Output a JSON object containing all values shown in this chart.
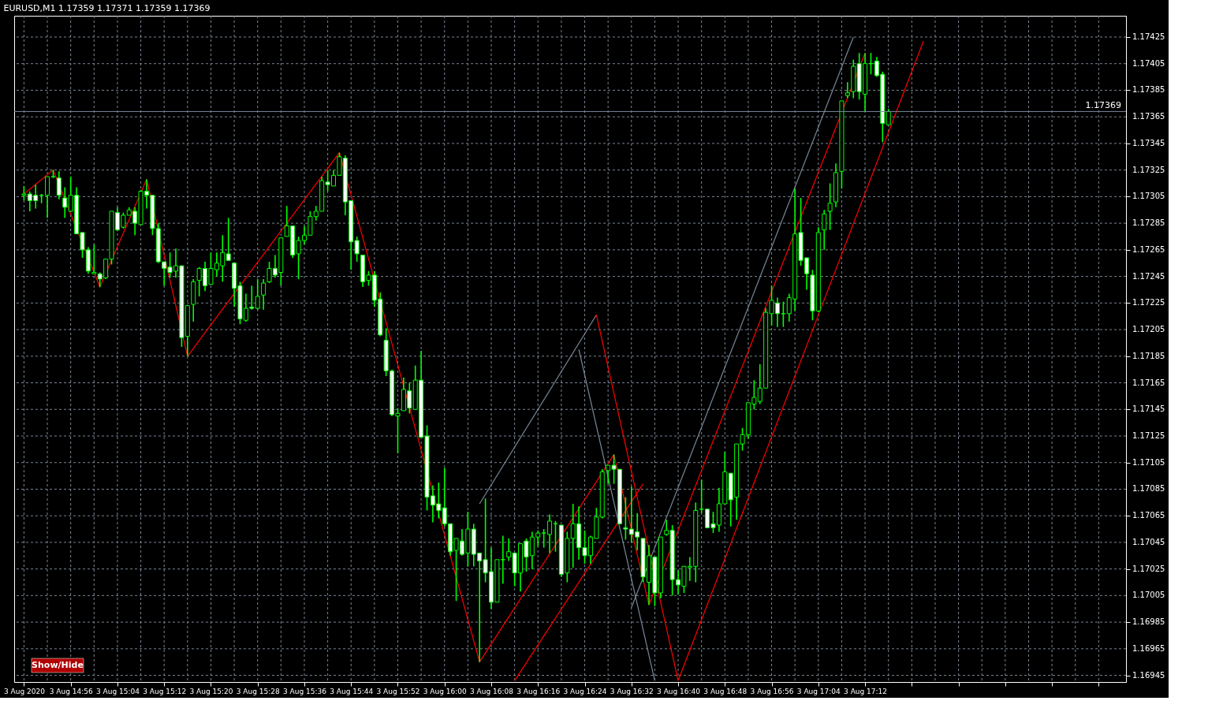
{
  "chart_data": {
    "type": "candlestick",
    "title": "EURUSD,M1  1.17359 1.17371 1.17359 1.17369",
    "color": "#00ff00",
    "grid": true,
    "x": [
      "2020-08-03T14:48",
      "2020-08-03T14:49",
      "2020-08-03T14:50",
      "2020-08-03T14:51",
      "2020-08-03T14:52",
      "2020-08-03T14:53",
      "2020-08-03T14:54",
      "2020-08-03T14:55",
      "2020-08-03T14:56",
      "2020-08-03T14:57",
      "2020-08-03T14:58",
      "2020-08-03T14:59",
      "2020-08-03T15:00",
      "2020-08-03T15:01",
      "2020-08-03T15:02",
      "2020-08-03T15:03",
      "2020-08-03T15:04",
      "2020-08-03T15:05",
      "2020-08-03T15:06",
      "2020-08-03T15:07",
      "2020-08-03T15:08",
      "2020-08-03T15:09",
      "2020-08-03T15:10",
      "2020-08-03T15:11",
      "2020-08-03T15:12",
      "2020-08-03T15:13",
      "2020-08-03T15:14",
      "2020-08-03T15:15",
      "2020-08-03T15:16",
      "2020-08-03T15:17",
      "2020-08-03T15:18",
      "2020-08-03T15:19",
      "2020-08-03T15:20",
      "2020-08-03T15:21",
      "2020-08-03T15:22",
      "2020-08-03T15:23",
      "2020-08-03T15:24",
      "2020-08-03T15:25",
      "2020-08-03T15:26",
      "2020-08-03T15:27",
      "2020-08-03T15:28",
      "2020-08-03T15:29",
      "2020-08-03T15:30",
      "2020-08-03T15:31",
      "2020-08-03T15:32",
      "2020-08-03T15:33",
      "2020-08-03T15:34",
      "2020-08-03T15:35",
      "2020-08-03T15:36",
      "2020-08-03T15:37",
      "2020-08-03T15:38",
      "2020-08-03T15:39",
      "2020-08-03T15:40",
      "2020-08-03T15:41",
      "2020-08-03T15:42",
      "2020-08-03T15:43",
      "2020-08-03T15:44",
      "2020-08-03T15:45",
      "2020-08-03T15:46",
      "2020-08-03T15:47",
      "2020-08-03T15:48",
      "2020-08-03T15:49",
      "2020-08-03T15:50",
      "2020-08-03T15:51",
      "2020-08-03T15:52",
      "2020-08-03T15:53",
      "2020-08-03T15:54",
      "2020-08-03T15:55",
      "2020-08-03T15:56",
      "2020-08-03T15:57",
      "2020-08-03T15:58",
      "2020-08-03T15:59",
      "2020-08-03T16:00",
      "2020-08-03T16:01",
      "2020-08-03T16:02",
      "2020-08-03T16:03",
      "2020-08-03T16:04",
      "2020-08-03T16:05",
      "2020-08-03T16:06",
      "2020-08-03T16:07",
      "2020-08-03T16:08",
      "2020-08-03T16:09",
      "2020-08-03T16:10",
      "2020-08-03T16:11",
      "2020-08-03T16:12",
      "2020-08-03T16:13",
      "2020-08-03T16:14",
      "2020-08-03T16:15",
      "2020-08-03T16:16",
      "2020-08-03T16:17",
      "2020-08-03T16:18",
      "2020-08-03T16:19",
      "2020-08-03T16:20",
      "2020-08-03T16:21",
      "2020-08-03T16:22",
      "2020-08-03T16:23",
      "2020-08-03T16:24",
      "2020-08-03T16:25",
      "2020-08-03T16:26",
      "2020-08-03T16:27",
      "2020-08-03T16:28",
      "2020-08-03T16:29",
      "2020-08-03T16:30",
      "2020-08-03T16:31",
      "2020-08-03T16:32",
      "2020-08-03T16:33",
      "2020-08-03T16:34",
      "2020-08-03T16:35",
      "2020-08-03T16:36",
      "2020-08-03T16:37",
      "2020-08-03T16:38",
      "2020-08-03T16:39",
      "2020-08-03T16:40",
      "2020-08-03T16:41",
      "2020-08-03T16:42",
      "2020-08-03T16:43",
      "2020-08-03T16:44",
      "2020-08-03T16:45",
      "2020-08-03T16:46",
      "2020-08-03T16:47",
      "2020-08-03T16:48",
      "2020-08-03T16:49",
      "2020-08-03T16:50",
      "2020-08-03T16:51",
      "2020-08-03T16:52",
      "2020-08-03T16:53",
      "2020-08-03T16:54",
      "2020-08-03T16:55",
      "2020-08-03T16:56",
      "2020-08-03T16:57",
      "2020-08-03T16:58",
      "2020-08-03T16:59",
      "2020-08-03T17:00",
      "2020-08-03T17:01",
      "2020-08-03T17:02",
      "2020-08-03T17:03",
      "2020-08-03T17:04",
      "2020-08-03T17:05",
      "2020-08-03T17:06",
      "2020-08-03T17:07",
      "2020-08-03T17:08",
      "2020-08-03T17:09",
      "2020-08-03T17:10",
      "2020-08-03T17:11",
      "2020-08-03T17:12",
      "2020-08-03T17:13",
      "2020-08-03T17:14",
      "2020-08-03T17:15",
      "2020-08-03T17:16"
    ],
    "ohlc": [
      [
        1.17306,
        1.17313,
        1.17302,
        1.17307
      ],
      [
        1.17307,
        1.17309,
        1.17294,
        1.17302
      ],
      [
        1.17306,
        1.17314,
        1.17296,
        1.17302
      ],
      [
        1.17306,
        1.17307,
        1.173,
        1.17306
      ],
      [
        1.17306,
        1.1732,
        1.17289,
        1.1732
      ],
      [
        1.1732,
        1.17325,
        1.17319,
        1.1732
      ],
      [
        1.17319,
        1.17324,
        1.17303,
        1.17306
      ],
      [
        1.17304,
        1.17312,
        1.17289,
        1.17297
      ],
      [
        1.17294,
        1.1732,
        1.17294,
        1.17306
      ],
      [
        1.17306,
        1.17312,
        1.17277,
        1.17277
      ],
      [
        1.17278,
        1.17278,
        1.17259,
        1.17265
      ],
      [
        1.17265,
        1.17267,
        1.17247,
        1.17249
      ],
      [
        1.17247,
        1.17269,
        1.17247,
        1.17248
      ],
      [
        1.17247,
        1.17248,
        1.17237,
        1.17243
      ],
      [
        1.17244,
        1.17258,
        1.17243,
        1.17258
      ],
      [
        1.17258,
        1.17294,
        1.17254,
        1.17294
      ],
      [
        1.17293,
        1.17297,
        1.17279,
        1.1728
      ],
      [
        1.17282,
        1.17293,
        1.17281,
        1.17291
      ],
      [
        1.17291,
        1.17297,
        1.17291,
        1.17295
      ],
      [
        1.17294,
        1.17297,
        1.17276,
        1.17285
      ],
      [
        1.17284,
        1.1731,
        1.17284,
        1.17309
      ],
      [
        1.17309,
        1.17318,
        1.17296,
        1.17306
      ],
      [
        1.17306,
        1.17306,
        1.17276,
        1.17281
      ],
      [
        1.17281,
        1.17285,
        1.17255,
        1.17256
      ],
      [
        1.17256,
        1.17256,
        1.17238,
        1.17251
      ],
      [
        1.17252,
        1.17263,
        1.17244,
        1.17248
      ],
      [
        1.17249,
        1.17266,
        1.17244,
        1.17253
      ],
      [
        1.17253,
        1.17253,
        1.17192,
        1.17199
      ],
      [
        1.172,
        1.17223,
        1.17185,
        1.17223
      ],
      [
        1.17224,
        1.17243,
        1.17211,
        1.17241
      ],
      [
        1.17242,
        1.17252,
        1.1723,
        1.17251
      ],
      [
        1.17251,
        1.17256,
        1.17234,
        1.17238
      ],
      [
        1.17239,
        1.17263,
        1.17239,
        1.17251
      ],
      [
        1.1725,
        1.17263,
        1.17245,
        1.17255
      ],
      [
        1.17253,
        1.17276,
        1.17241,
        1.17263
      ],
      [
        1.17262,
        1.17289,
        1.17257,
        1.17257
      ],
      [
        1.17255,
        1.17255,
        1.17222,
        1.17236
      ],
      [
        1.17238,
        1.17241,
        1.17209,
        1.17213
      ],
      [
        1.17212,
        1.17232,
        1.17211,
        1.17221
      ],
      [
        1.17222,
        1.17238,
        1.1722,
        1.17221
      ],
      [
        1.17221,
        1.17243,
        1.1722,
        1.1723
      ],
      [
        1.17231,
        1.17243,
        1.1722,
        1.1724
      ],
      [
        1.17241,
        1.17256,
        1.1724,
        1.17251
      ],
      [
        1.17251,
        1.17261,
        1.17244,
        1.17246
      ],
      [
        1.17248,
        1.17274,
        1.17238,
        1.17274
      ],
      [
        1.17275,
        1.17298,
        1.17275,
        1.17283
      ],
      [
        1.17283,
        1.17283,
        1.17259,
        1.17261
      ],
      [
        1.17262,
        1.17275,
        1.17243,
        1.17272
      ],
      [
        1.17272,
        1.17283,
        1.17269,
        1.17276
      ],
      [
        1.17276,
        1.17294,
        1.17276,
        1.1729
      ],
      [
        1.1729,
        1.17298,
        1.17287,
        1.17294
      ],
      [
        1.17294,
        1.1732,
        1.17294,
        1.17317
      ],
      [
        1.17316,
        1.17325,
        1.17309,
        1.17314
      ],
      [
        1.17313,
        1.17325,
        1.17313,
        1.17321
      ],
      [
        1.17321,
        1.17338,
        1.17321,
        1.17335
      ],
      [
        1.17334,
        1.17336,
        1.17291,
        1.17301
      ],
      [
        1.17302,
        1.17302,
        1.1725,
        1.17271
      ],
      [
        1.17272,
        1.17275,
        1.17256,
        1.17262
      ],
      [
        1.17261,
        1.17261,
        1.17237,
        1.17241
      ],
      [
        1.17242,
        1.17249,
        1.17238,
        1.17246
      ],
      [
        1.17246,
        1.17249,
        1.17222,
        1.17227
      ],
      [
        1.17228,
        1.17233,
        1.172,
        1.17201
      ],
      [
        1.17197,
        1.17206,
        1.1717,
        1.17174
      ],
      [
        1.17174,
        1.17175,
        1.1714,
        1.17141
      ],
      [
        1.1714,
        1.17146,
        1.17112,
        1.17142
      ],
      [
        1.17144,
        1.17169,
        1.17144,
        1.1716
      ],
      [
        1.17159,
        1.17165,
        1.17142,
        1.17146
      ],
      [
        1.17145,
        1.17178,
        1.17145,
        1.17167
      ],
      [
        1.17167,
        1.17189,
        1.17124,
        1.17124
      ],
      [
        1.17125,
        1.17133,
        1.17069,
        1.17079
      ],
      [
        1.1708,
        1.17088,
        1.1706,
        1.17073
      ],
      [
        1.17074,
        1.1709,
        1.17063,
        1.17069
      ],
      [
        1.17071,
        1.17101,
        1.17057,
        1.17059
      ],
      [
        1.17059,
        1.17059,
        1.17035,
        1.17038
      ],
      [
        1.17039,
        1.17048,
        1.17001,
        1.17048
      ],
      [
        1.17046,
        1.17055,
        1.17035,
        1.17036
      ],
      [
        1.17037,
        1.17068,
        1.17027,
        1.17055
      ],
      [
        1.17055,
        1.17059,
        1.17027,
        1.17036
      ],
      [
        1.17037,
        1.17037,
        1.16955,
        1.17031
      ],
      [
        1.17032,
        1.17078,
        1.17015,
        1.17022
      ],
      [
        1.17023,
        1.17041,
        1.16995,
        1.17
      ],
      [
        1.17,
        1.17032,
        1.17,
        1.17032
      ],
      [
        1.17032,
        1.1705,
        1.17014,
        1.17032
      ],
      [
        1.17034,
        1.17048,
        1.17031,
        1.17038
      ],
      [
        1.17037,
        1.17037,
        1.17012,
        1.17022
      ],
      [
        1.17022,
        1.17044,
        1.17008,
        1.17044
      ],
      [
        1.17046,
        1.17048,
        1.17023,
        1.17034
      ],
      [
        1.17035,
        1.17053,
        1.17025,
        1.17049
      ],
      [
        1.17049,
        1.17054,
        1.17042,
        1.17052
      ],
      [
        1.17052,
        1.17055,
        1.17041,
        1.17052
      ],
      [
        1.17051,
        1.17066,
        1.17037,
        1.17061
      ],
      [
        1.17059,
        1.17061,
        1.17038,
        1.17059
      ],
      [
        1.17058,
        1.17058,
        1.17019,
        1.17021
      ],
      [
        1.17022,
        1.17053,
        1.17015,
        1.17048
      ],
      [
        1.17048,
        1.17074,
        1.17026,
        1.17059
      ],
      [
        1.17059,
        1.17072,
        1.17032,
        1.17041
      ],
      [
        1.17041,
        1.17054,
        1.17029,
        1.17035
      ],
      [
        1.17035,
        1.1705,
        1.17029,
        1.17049
      ],
      [
        1.17048,
        1.17071,
        1.17048,
        1.17064
      ],
      [
        1.17064,
        1.171,
        1.17063,
        1.17098
      ],
      [
        1.17099,
        1.17103,
        1.17089,
        1.17103
      ],
      [
        1.17103,
        1.17111,
        1.17089,
        1.171
      ],
      [
        1.171,
        1.171,
        1.17059,
        1.17059
      ],
      [
        1.17056,
        1.17079,
        1.17047,
        1.17055
      ],
      [
        1.17055,
        1.17087,
        1.17045,
        1.17051
      ],
      [
        1.17053,
        1.17067,
        1.17039,
        1.17049
      ],
      [
        1.17048,
        1.17048,
        1.17015,
        1.17019
      ],
      [
        1.17015,
        1.17043,
        1.16998,
        1.17035
      ],
      [
        1.17034,
        1.17034,
        1.16997,
        1.17007
      ],
      [
        1.17007,
        1.17049,
        1.17003,
        1.17049
      ],
      [
        1.17051,
        1.17062,
        1.1705,
        1.17054
      ],
      [
        1.17054,
        1.17058,
        1.17005,
        1.17017
      ],
      [
        1.17017,
        1.17024,
        1.17006,
        1.17013
      ],
      [
        1.17012,
        1.17027,
        1.17007,
        1.17027
      ],
      [
        1.17026,
        1.17034,
        1.17016,
        1.17027
      ],
      [
        1.17027,
        1.17075,
        1.17015,
        1.17069
      ],
      [
        1.1707,
        1.17092,
        1.17067,
        1.1707
      ],
      [
        1.1707,
        1.1707,
        1.17056,
        1.17056
      ],
      [
        1.17059,
        1.17068,
        1.17052,
        1.17056
      ],
      [
        1.17058,
        1.17086,
        1.17053,
        1.17074
      ],
      [
        1.17074,
        1.17113,
        1.17074,
        1.17098
      ],
      [
        1.17097,
        1.17097,
        1.17057,
        1.17077
      ],
      [
        1.17079,
        1.17119,
        1.17062,
        1.17119
      ],
      [
        1.17119,
        1.17131,
        1.17114,
        1.17126
      ],
      [
        1.17126,
        1.1715,
        1.17123,
        1.1715
      ],
      [
        1.17149,
        1.17167,
        1.17145,
        1.17154
      ],
      [
        1.17151,
        1.17179,
        1.17149,
        1.17161
      ],
      [
        1.17161,
        1.17221,
        1.17161,
        1.17218
      ],
      [
        1.17217,
        1.17238,
        1.17208,
        1.17227
      ],
      [
        1.17225,
        1.17229,
        1.17207,
        1.17217
      ],
      [
        1.17217,
        1.17226,
        1.17207,
        1.17217
      ],
      [
        1.17217,
        1.17232,
        1.17211,
        1.17229
      ],
      [
        1.17228,
        1.17311,
        1.17219,
        1.17277
      ],
      [
        1.17278,
        1.17304,
        1.17253,
        1.17257
      ],
      [
        1.17259,
        1.17259,
        1.17235,
        1.17247
      ],
      [
        1.17246,
        1.1725,
        1.17212,
        1.17219
      ],
      [
        1.17219,
        1.17282,
        1.17218,
        1.17278
      ],
      [
        1.1728,
        1.17295,
        1.17265,
        1.17292
      ],
      [
        1.17294,
        1.17315,
        1.1728,
        1.173
      ],
      [
        1.17301,
        1.1733,
        1.17297,
        1.17323
      ],
      [
        1.17324,
        1.17377,
        1.17311,
        1.17377
      ],
      [
        1.17381,
        1.17391,
        1.17379,
        1.17383
      ],
      [
        1.17384,
        1.17408,
        1.17379,
        1.17403
      ],
      [
        1.17405,
        1.17413,
        1.17378,
        1.17384
      ],
      [
        1.17382,
        1.17413,
        1.17369,
        1.17405
      ],
      [
        1.17405,
        1.17413,
        1.17397,
        1.17405
      ],
      [
        1.17407,
        1.1741,
        1.17395,
        1.17396
      ],
      [
        1.17397,
        1.17399,
        1.17346,
        1.1736
      ],
      [
        1.17359,
        1.17371,
        1.17359,
        1.17369
      ]
    ],
    "series": [
      {
        "type": "line",
        "color": "#ff0000",
        "x": [
          "2020-08-03T14:48",
          "2020-08-03T14:53",
          "2020-08-03T15:01",
          "2020-08-03T15:09",
          "2020-08-03T15:16",
          "2020-08-03T15:42",
          "2020-08-03T16:06",
          "2020-08-03T16:29",
          "2020-08-03T16:35",
          "2020-08-03T17:12"
        ],
        "values": [
          1.17307,
          1.17325,
          1.17237,
          1.17318,
          1.17185,
          1.17338,
          1.16955,
          1.17111,
          1.16998,
          1.17413
        ]
      },
      {
        "type": "line",
        "color": "#778899",
        "x": [
          "2020-08-03T16:06",
          "2020-08-03T16:26"
        ],
        "values": [
          1.17074,
          1.17216
        ]
      },
      {
        "type": "line",
        "color": "#778899",
        "x": [
          "2020-08-03T16:23",
          "2020-08-03T16:36"
        ],
        "values": [
          1.1719,
          1.16941
        ]
      },
      {
        "type": "line",
        "color": "#778899",
        "x": [
          "2020-08-03T16:32",
          "2020-08-03T17:10"
        ],
        "values": [
          1.16996,
          1.17425
        ]
      },
      {
        "type": "line",
        "color": "#ff0000",
        "x": [
          "2020-08-03T16:26",
          "2020-08-03T16:40"
        ],
        "values": [
          1.17216,
          1.16941
        ]
      },
      {
        "type": "line",
        "color": "#ff0000",
        "x": [
          "2020-08-03T16:12",
          "2020-08-03T16:34"
        ],
        "values": [
          1.16941,
          1.17089
        ]
      },
      {
        "type": "line",
        "color": "#ff0000",
        "x": [
          "2020-08-03T16:40",
          "2020-08-03T17:22"
        ],
        "values": [
          1.16941,
          1.17422
        ]
      }
    ],
    "ref_lines": [
      {
        "axis": "y",
        "value": 1.17369,
        "label": "1.17369",
        "color": "#778899"
      }
    ],
    "annotations": [
      "Show/Hide"
    ],
    "xlim": [
      "2020-08-03T14:47",
      "2020-08-03T17:56"
    ],
    "ylim": [
      1.1694,
      1.17441
    ],
    "xticks": [
      {
        "value": "2020-08-03T14:48",
        "label": "3 Aug 2020"
      },
      {
        "value": "2020-08-03T14:52",
        "label": null
      },
      {
        "value": "2020-08-03T14:56",
        "label": "3 Aug 14:56"
      },
      {
        "value": "2020-08-03T15:00",
        "label": null
      },
      {
        "value": "2020-08-03T15:04",
        "label": "3 Aug 15:04"
      },
      {
        "value": "2020-08-03T15:08",
        "label": null
      },
      {
        "value": "2020-08-03T15:12",
        "label": "3 Aug 15:12"
      },
      {
        "value": "2020-08-03T15:16",
        "label": null
      },
      {
        "value": "2020-08-03T15:20",
        "label": "3 Aug 15:20"
      },
      {
        "value": "2020-08-03T15:24",
        "label": null
      },
      {
        "value": "2020-08-03T15:28",
        "label": "3 Aug 15:28"
      },
      {
        "value": "2020-08-03T15:32",
        "label": null
      },
      {
        "value": "2020-08-03T15:36",
        "label": "3 Aug 15:36"
      },
      {
        "value": "2020-08-03T15:40",
        "label": null
      },
      {
        "value": "2020-08-03T15:44",
        "label": "3 Aug 15:44"
      },
      {
        "value": "2020-08-03T15:48",
        "label": null
      },
      {
        "value": "2020-08-03T15:52",
        "label": "3 Aug 15:52"
      },
      {
        "value": "2020-08-03T15:56",
        "label": null
      },
      {
        "value": "2020-08-03T16:00",
        "label": "3 Aug 16:00"
      },
      {
        "value": "2020-08-03T16:04",
        "label": null
      },
      {
        "value": "2020-08-03T16:08",
        "label": "3 Aug 16:08"
      },
      {
        "value": "2020-08-03T16:12",
        "label": null
      },
      {
        "value": "2020-08-03T16:16",
        "label": "3 Aug 16:16"
      },
      {
        "value": "2020-08-03T16:20",
        "label": null
      },
      {
        "value": "2020-08-03T16:24",
        "label": "3 Aug 16:24"
      },
      {
        "value": "2020-08-03T16:28",
        "label": null
      },
      {
        "value": "2020-08-03T16:32",
        "label": "3 Aug 16:32"
      },
      {
        "value": "2020-08-03T16:36",
        "label": null
      },
      {
        "value": "2020-08-03T16:40",
        "label": "3 Aug 16:40"
      },
      {
        "value": "2020-08-03T16:44",
        "label": null
      },
      {
        "value": "2020-08-03T16:48",
        "label": "3 Aug 16:48"
      },
      {
        "value": "2020-08-03T16:52",
        "label": null
      },
      {
        "value": "2020-08-03T16:56",
        "label": "3 Aug 16:56"
      },
      {
        "value": "2020-08-03T17:00",
        "label": null
      },
      {
        "value": "2020-08-03T17:04",
        "label": "3 Aug 17:04"
      },
      {
        "value": "2020-08-03T17:08",
        "label": null
      },
      {
        "value": "2020-08-03T17:12",
        "label": "3 Aug 17:12"
      },
      {
        "value": "2020-08-03T17:16",
        "label": null
      },
      {
        "value": "2020-08-03T17:20",
        "label": null
      },
      {
        "value": "2020-08-03T17:24",
        "label": null
      },
      {
        "value": "2020-08-03T17:28",
        "label": null
      },
      {
        "value": "2020-08-03T17:32",
        "label": null
      },
      {
        "value": "2020-08-03T17:36",
        "label": null
      },
      {
        "value": "2020-08-03T17:40",
        "label": null
      },
      {
        "value": "2020-08-03T17:44",
        "label": null
      },
      {
        "value": "2020-08-03T17:48",
        "label": null
      },
      {
        "value": "2020-08-03T17:52",
        "label": null
      }
    ],
    "yticks": [
      1.16945,
      1.16965,
      1.16985,
      1.17005,
      1.17025,
      1.17045,
      1.17065,
      1.17085,
      1.17105,
      1.17125,
      1.17145,
      1.17165,
      1.17185,
      1.17205,
      1.17225,
      1.17245,
      1.17265,
      1.17285,
      1.17305,
      1.17325,
      1.17345,
      1.17365,
      1.17385,
      1.17405,
      1.17425
    ]
  }
}
